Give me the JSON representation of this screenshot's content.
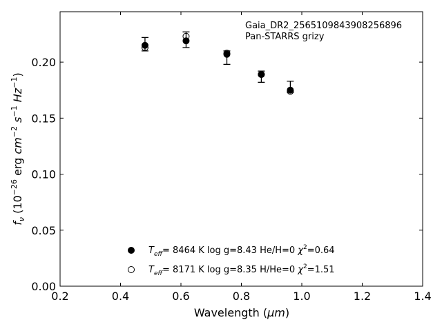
{
  "chart_data": {
    "type": "scatter",
    "xlabel_main": "Wavelength (",
    "xlabel_unit": "μm",
    "xlabel_end": ")",
    "ylabel": {
      "f": "f",
      "sub": "ν",
      "open": " (10",
      "exp": "−26",
      "mid": " erg ",
      "cm": "cm",
      "cmexp": "−2",
      "s": " s",
      "sexp": "−1",
      "hz": " Hz",
      "hzexp": "−1",
      "close": ")"
    },
    "xlim": [
      0.2,
      1.4
    ],
    "ylim": [
      0.0,
      0.245
    ],
    "xticks": [
      "0.2",
      "0.4",
      "0.6",
      "0.8",
      "1.0",
      "1.2",
      "1.4"
    ],
    "xtick_values": [
      0.2,
      0.4,
      0.6,
      0.8,
      1.0,
      1.2,
      1.4
    ],
    "yticks": [
      "0.00",
      "0.05",
      "0.10",
      "0.15",
      "0.20"
    ],
    "ytick_values": [
      0.0,
      0.05,
      0.1,
      0.15,
      0.2
    ],
    "annotation": [
      "Gaia_DR2_2565109843908256896",
      "Pan-STARRS grizy"
    ],
    "observed": {
      "x": [
        0.481,
        0.617,
        0.752,
        0.866,
        0.962
      ],
      "y": [
        0.216,
        0.22,
        0.204,
        0.187,
        0.178
      ],
      "err": [
        0.006,
        0.007,
        0.006,
        0.005,
        0.005
      ]
    },
    "series": [
      {
        "marker": "filled",
        "x": [
          0.481,
          0.617,
          0.752,
          0.866,
          0.962
        ],
        "y": [
          0.215,
          0.219,
          0.207,
          0.189,
          0.175
        ],
        "legend": {
          "t": "T",
          "tsub": "eff",
          "text": "=  8464 K  log g=8.43  He/H=0  ",
          "chi": "χ",
          "chiexp": "2",
          "chival": "=0.64"
        }
      },
      {
        "marker": "open",
        "x": [
          0.481,
          0.617,
          0.752,
          0.866,
          0.962
        ],
        "y": [
          0.213,
          0.223,
          0.208,
          0.189,
          0.174
        ],
        "legend": {
          "t": "T",
          "tsub": "eff",
          "text": "=  8171 K  log g=8.35  H/He=0  ",
          "chi": "χ",
          "chiexp": "2",
          "chival": "=1.51"
        }
      }
    ],
    "grid": false,
    "legend_position": "lower-center"
  }
}
